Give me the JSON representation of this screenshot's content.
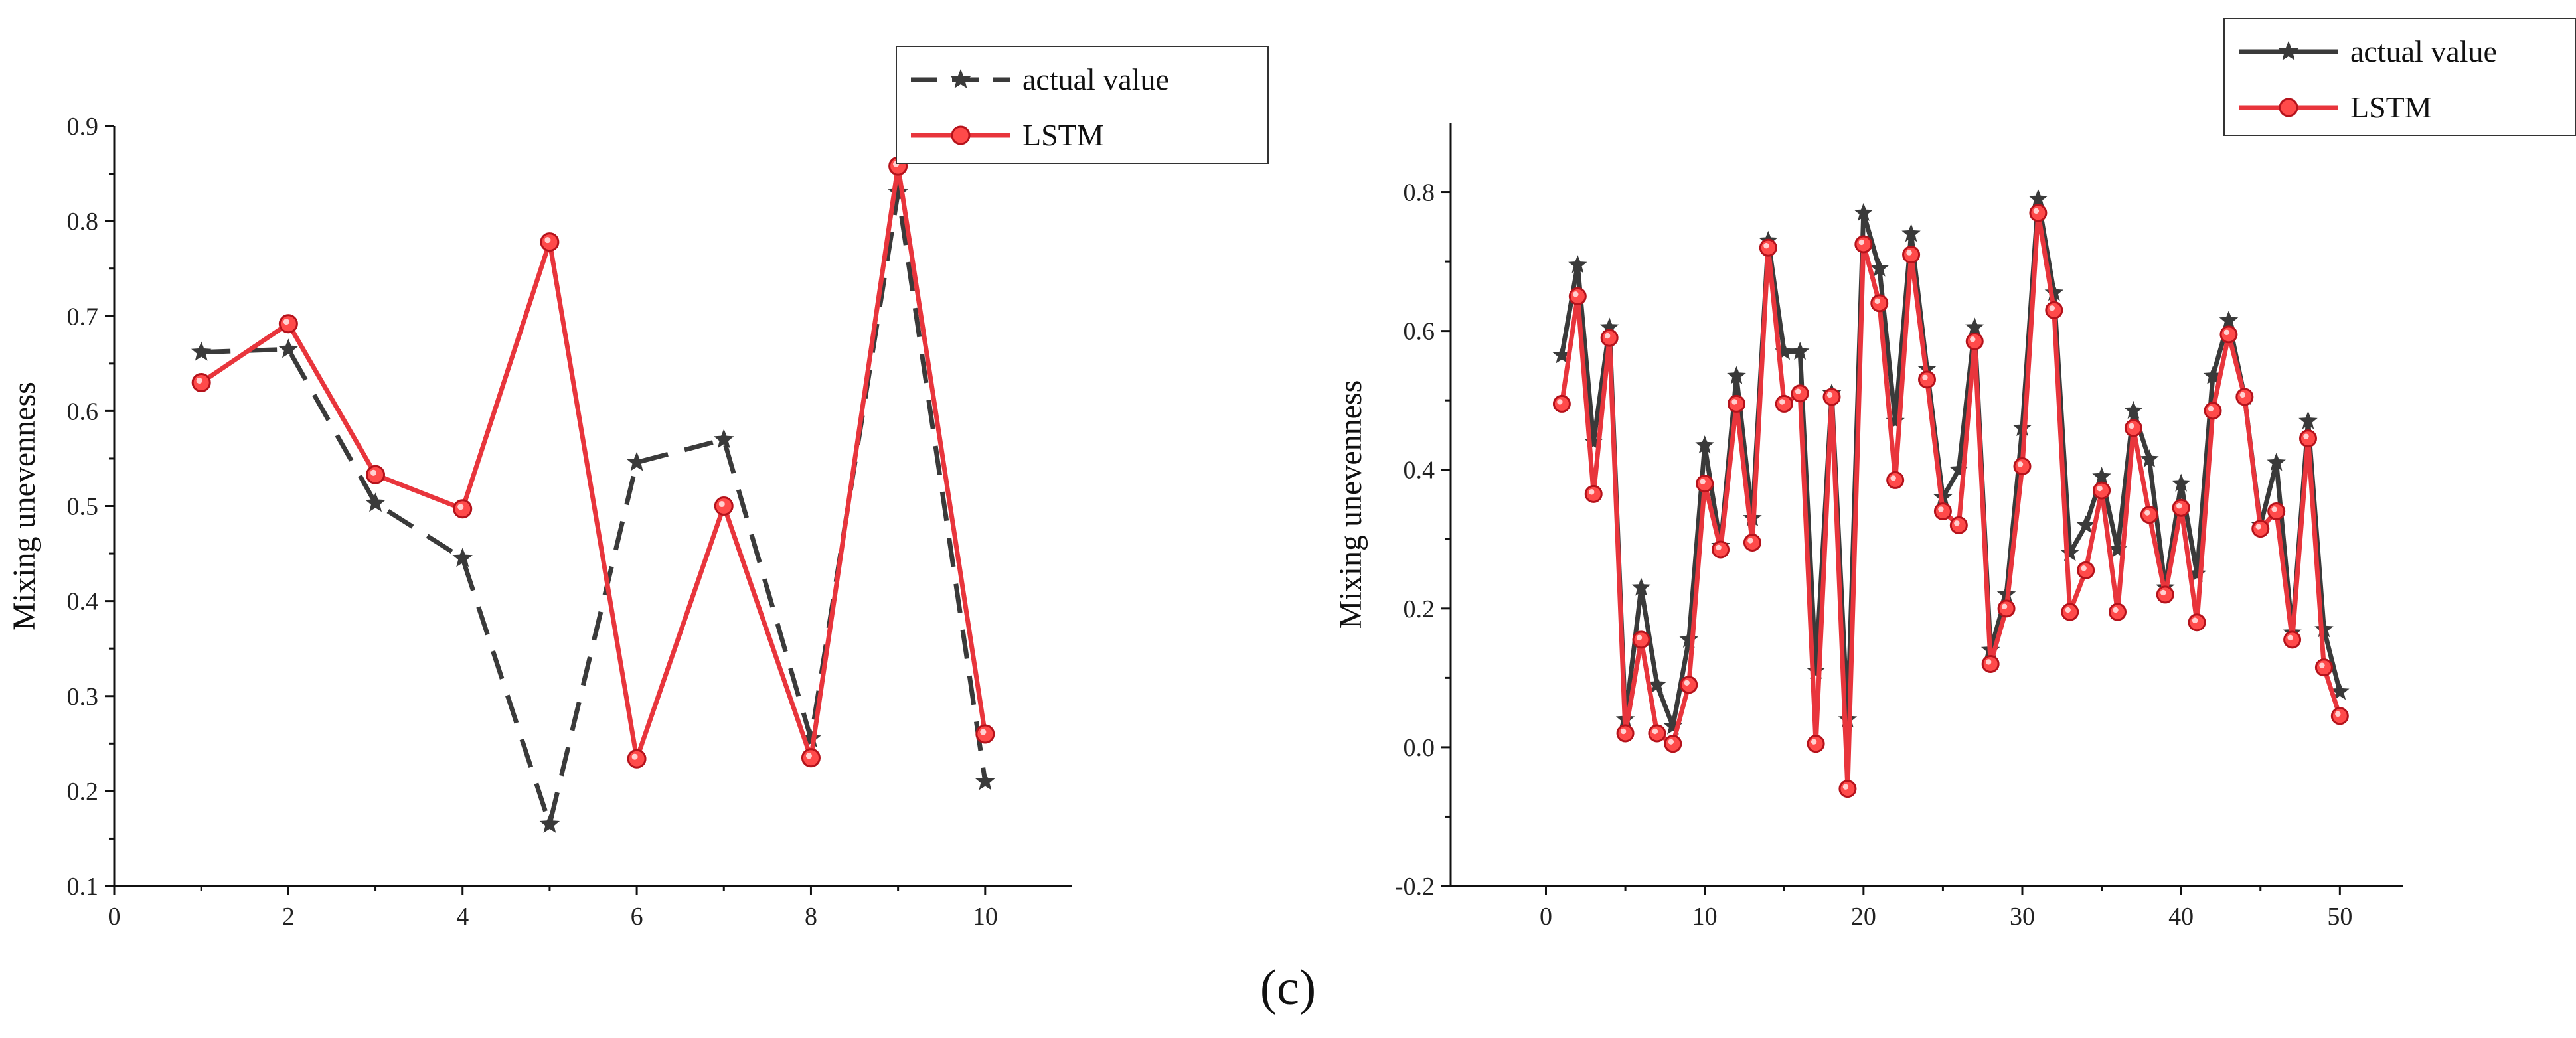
{
  "caption": "(c)",
  "colors": {
    "actual": "#3a3a3a",
    "lstm": "#e8353c",
    "marker_fill": "#ff4a4a"
  },
  "chart_data": [
    {
      "type": "line",
      "xlabel": "",
      "ylabel": "Mixing unevenness",
      "xlim": [
        0,
        11
      ],
      "ylim": [
        0.1,
        0.9
      ],
      "xticks": [
        "0",
        "2",
        "4",
        "6",
        "8",
        "10"
      ],
      "yticks": [
        "0.1",
        "0.2",
        "0.3",
        "0.4",
        "0.5",
        "0.6",
        "0.7",
        "0.8",
        "0.9"
      ],
      "legend": "top-right",
      "series": [
        {
          "name": "actual value",
          "style": "dashed",
          "marker": "star",
          "x": [
            1,
            2,
            3,
            4,
            5,
            6,
            7,
            8,
            9,
            10
          ],
          "values": [
            0.662,
            0.665,
            0.503,
            0.445,
            0.165,
            0.546,
            0.57,
            0.255,
            0.83,
            0.21
          ]
        },
        {
          "name": "LSTM",
          "style": "solid",
          "marker": "circle",
          "x": [
            1,
            2,
            3,
            4,
            5,
            6,
            7,
            8,
            9,
            10
          ],
          "values": [
            0.63,
            0.692,
            0.533,
            0.497,
            0.778,
            0.234,
            0.5,
            0.235,
            0.858,
            0.26
          ]
        }
      ]
    },
    {
      "type": "line",
      "xlabel": "",
      "ylabel": "Mixing unevenness",
      "xlim": [
        -6,
        54
      ],
      "ylim": [
        -0.2,
        0.9
      ],
      "xticks": [
        "0",
        "10",
        "20",
        "30",
        "40",
        "50"
      ],
      "yticks": [
        "-0.2",
        "0.0",
        "0.2",
        "0.4",
        "0.6",
        "0.8"
      ],
      "legend": "top-right",
      "series": [
        {
          "name": "actual value",
          "style": "solid",
          "marker": "star",
          "x": [
            1,
            2,
            3,
            4,
            5,
            6,
            7,
            8,
            9,
            10,
            11,
            12,
            13,
            14,
            15,
            16,
            17,
            18,
            19,
            20,
            21,
            22,
            23,
            24,
            25,
            26,
            27,
            28,
            29,
            30,
            31,
            32,
            33,
            34,
            35,
            36,
            37,
            38,
            39,
            40,
            41,
            42,
            43,
            44,
            45,
            46,
            47,
            48,
            49,
            50
          ],
          "values": [
            0.565,
            0.695,
            0.44,
            0.605,
            0.04,
            0.23,
            0.09,
            0.03,
            0.155,
            0.435,
            0.29,
            0.535,
            0.33,
            0.73,
            0.57,
            0.57,
            0.11,
            0.51,
            0.04,
            0.77,
            0.69,
            0.47,
            0.74,
            0.545,
            0.36,
            0.4,
            0.605,
            0.14,
            0.22,
            0.46,
            0.79,
            0.655,
            0.28,
            0.32,
            0.39,
            0.285,
            0.485,
            0.415,
            0.23,
            0.38,
            0.25,
            0.535,
            0.615,
            0.505,
            0.32,
            0.41,
            0.165,
            0.47,
            0.17,
            0.08
          ]
        },
        {
          "name": "LSTM",
          "style": "solid",
          "marker": "circle",
          "x": [
            1,
            2,
            3,
            4,
            5,
            6,
            7,
            8,
            9,
            10,
            11,
            12,
            13,
            14,
            15,
            16,
            17,
            18,
            19,
            20,
            21,
            22,
            23,
            24,
            25,
            26,
            27,
            28,
            29,
            30,
            31,
            32,
            33,
            34,
            35,
            36,
            37,
            38,
            39,
            40,
            41,
            42,
            43,
            44,
            45,
            46,
            47,
            48,
            49,
            50
          ],
          "values": [
            0.495,
            0.65,
            0.365,
            0.59,
            0.02,
            0.155,
            0.02,
            0.005,
            0.09,
            0.38,
            0.285,
            0.495,
            0.295,
            0.72,
            0.495,
            0.51,
            0.005,
            0.505,
            -0.06,
            0.725,
            0.64,
            0.385,
            0.71,
            0.53,
            0.34,
            0.32,
            0.585,
            0.12,
            0.2,
            0.405,
            0.77,
            0.63,
            0.195,
            0.255,
            0.37,
            0.195,
            0.46,
            0.335,
            0.22,
            0.345,
            0.18,
            0.485,
            0.595,
            0.505,
            0.315,
            0.34,
            0.155,
            0.445,
            0.115,
            0.045
          ]
        }
      ]
    }
  ]
}
